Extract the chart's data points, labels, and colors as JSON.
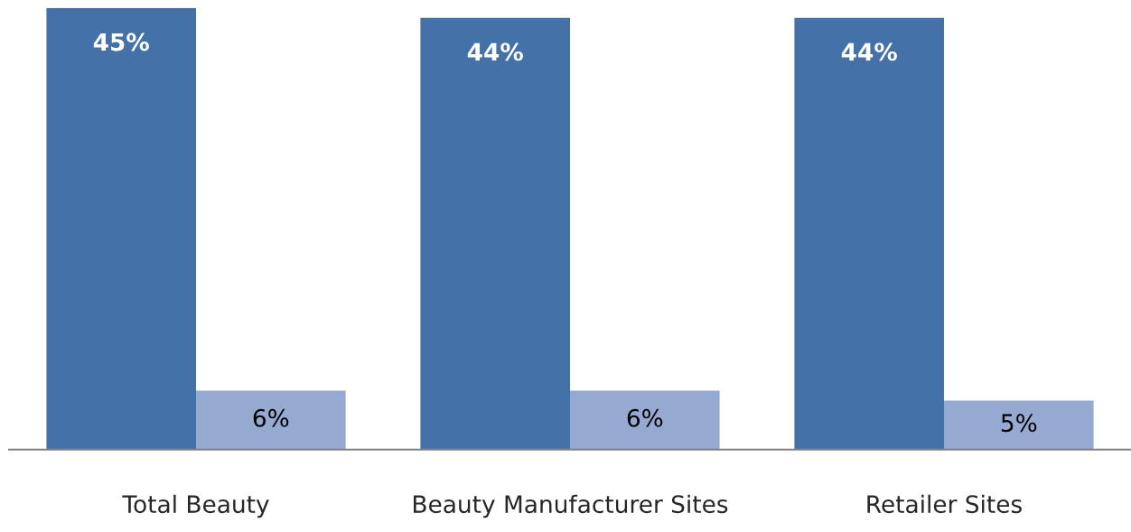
{
  "chart_data": {
    "type": "bar",
    "categories": [
      "Total Beauty",
      "Beauty Manufacturer Sites",
      "Retailer Sites"
    ],
    "series": [
      {
        "color": "#4472a8",
        "values": [
          45,
          44,
          44
        ],
        "value_labels": [
          "45%",
          "44%",
          "44%"
        ]
      },
      {
        "color": "#95a9d1",
        "values": [
          6,
          6,
          5
        ],
        "value_labels": [
          "6%",
          "6%",
          "5%"
        ]
      }
    ],
    "ylim": [
      0,
      45
    ],
    "tick_labels": "x",
    "grid": false,
    "legend": false
  }
}
